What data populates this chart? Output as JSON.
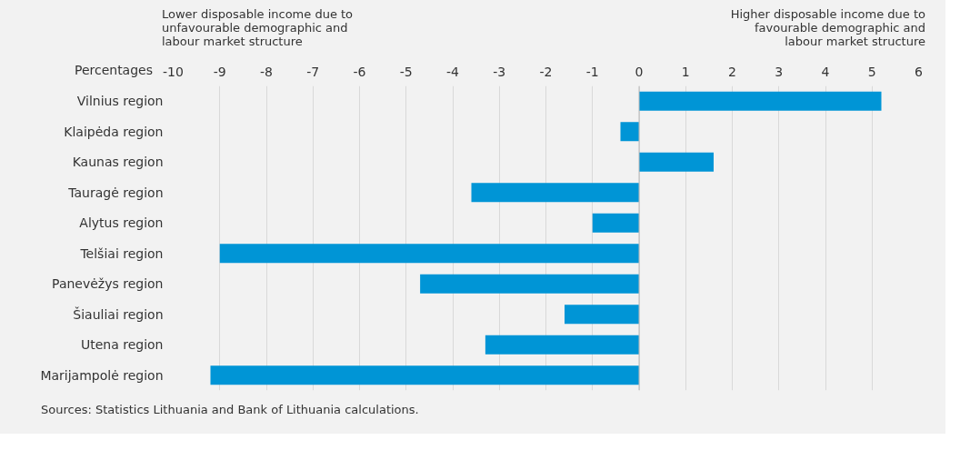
{
  "chart_data": {
    "type": "bar",
    "orientation": "horizontal",
    "categories": [
      "Vilnius region",
      "Klaipėda region",
      "Kaunas region",
      "Tauragė region",
      "Alytus region",
      "Telšiai region",
      "Panevėžys region",
      "Šiauliai region",
      "Utena region",
      "Marijampolė region"
    ],
    "values": [
      5.2,
      -0.4,
      1.6,
      -3.6,
      -1.0,
      -9.0,
      -4.7,
      -1.6,
      -3.3,
      -9.2
    ],
    "color": "#0095d6",
    "xlabel": "Percentages",
    "xlim": [
      -10,
      6
    ],
    "xticks": [
      -10,
      -9,
      -8,
      -7,
      -6,
      -5,
      -4,
      -3,
      -2,
      -1,
      0,
      1,
      2,
      3,
      4,
      5,
      6
    ],
    "grid": "x",
    "legend": false,
    "annotations": [
      "Lower disposable income due to unfavourable demographic and labour market structure",
      "Higher disposable income due to favourable demographic and labour market structure",
      "Sources: Statistics Lithuania and Bank of Lithuania calculations."
    ]
  }
}
